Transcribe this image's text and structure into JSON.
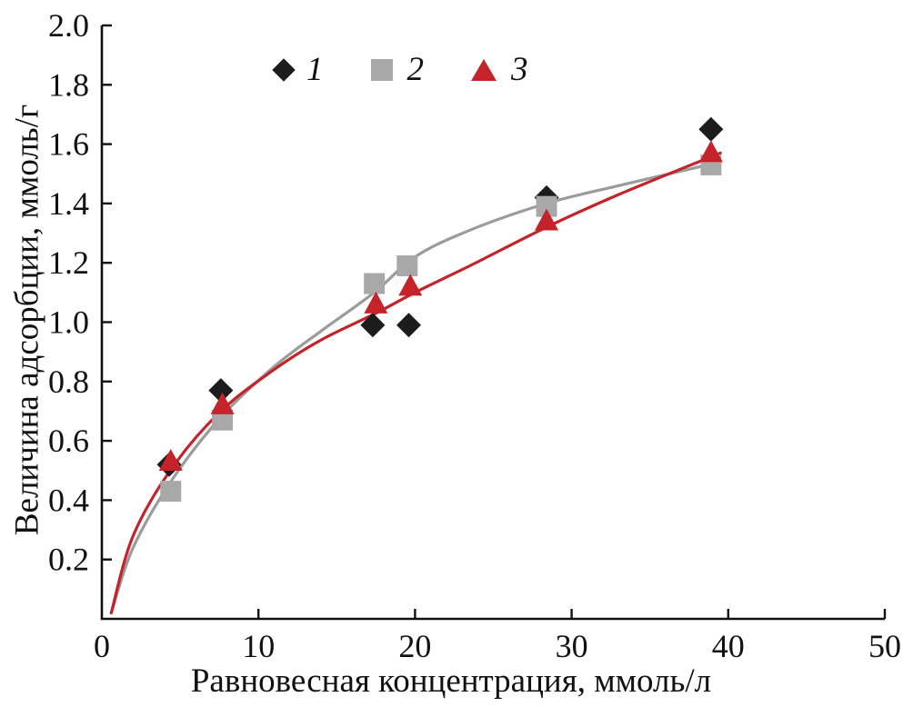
{
  "chart_data": {
    "type": "scatter",
    "title": "",
    "xlabel": "Равновесная концентрация, ммоль/л",
    "ylabel": "Величина адсорбции, ммоль/г",
    "xlim": [
      0,
      50
    ],
    "ylim": [
      0,
      2.0
    ],
    "x_ticks": [
      0,
      10,
      20,
      30,
      40,
      50
    ],
    "y_ticks": [
      0.2,
      0.4,
      0.6,
      0.8,
      1.0,
      1.2,
      1.4,
      1.6,
      1.8,
      2.0
    ],
    "grid": false,
    "legend_position": "top-inside",
    "axis_color": "#111111",
    "series": [
      {
        "name": "1",
        "marker": "diamond",
        "color": "#1c1c1c",
        "points": [
          [
            4.3,
            0.52
          ],
          [
            7.6,
            0.77
          ],
          [
            17.3,
            0.99
          ],
          [
            19.6,
            0.99
          ],
          [
            28.4,
            1.42
          ],
          [
            38.9,
            1.65
          ]
        ]
      },
      {
        "name": "2",
        "marker": "square",
        "color": "#a8a8a8",
        "points": [
          [
            4.4,
            0.43
          ],
          [
            7.7,
            0.67
          ],
          [
            17.4,
            1.13
          ],
          [
            19.5,
            1.19
          ],
          [
            28.4,
            1.39
          ],
          [
            38.9,
            1.53
          ]
        ]
      },
      {
        "name": "3",
        "marker": "triangle",
        "color": "#c4232a",
        "points": [
          [
            4.4,
            0.53
          ],
          [
            7.7,
            0.72
          ],
          [
            17.5,
            1.06
          ],
          [
            19.7,
            1.12
          ],
          [
            28.4,
            1.34
          ],
          [
            38.9,
            1.57
          ]
        ]
      }
    ],
    "curves": [
      {
        "name": "fit-series-2",
        "color": "#9b9b9b",
        "points": [
          [
            0.6,
            0.02
          ],
          [
            2.0,
            0.24
          ],
          [
            4.5,
            0.47
          ],
          [
            7.6,
            0.68
          ],
          [
            11.0,
            0.85
          ],
          [
            14.0,
            0.97
          ],
          [
            17.4,
            1.1
          ],
          [
            20.0,
            1.22
          ],
          [
            23.5,
            1.31
          ],
          [
            28.4,
            1.4
          ],
          [
            33.0,
            1.46
          ],
          [
            39.5,
            1.54
          ]
        ]
      },
      {
        "name": "fit-series-3",
        "color": "#c4232a",
        "points": [
          [
            0.6,
            0.02
          ],
          [
            2.0,
            0.28
          ],
          [
            4.5,
            0.51
          ],
          [
            7.6,
            0.7
          ],
          [
            11.0,
            0.84
          ],
          [
            14.0,
            0.94
          ],
          [
            17.5,
            1.03
          ],
          [
            20.0,
            1.1
          ],
          [
            23.5,
            1.19
          ],
          [
            28.4,
            1.32
          ],
          [
            33.0,
            1.43
          ],
          [
            39.5,
            1.57
          ]
        ]
      }
    ]
  }
}
